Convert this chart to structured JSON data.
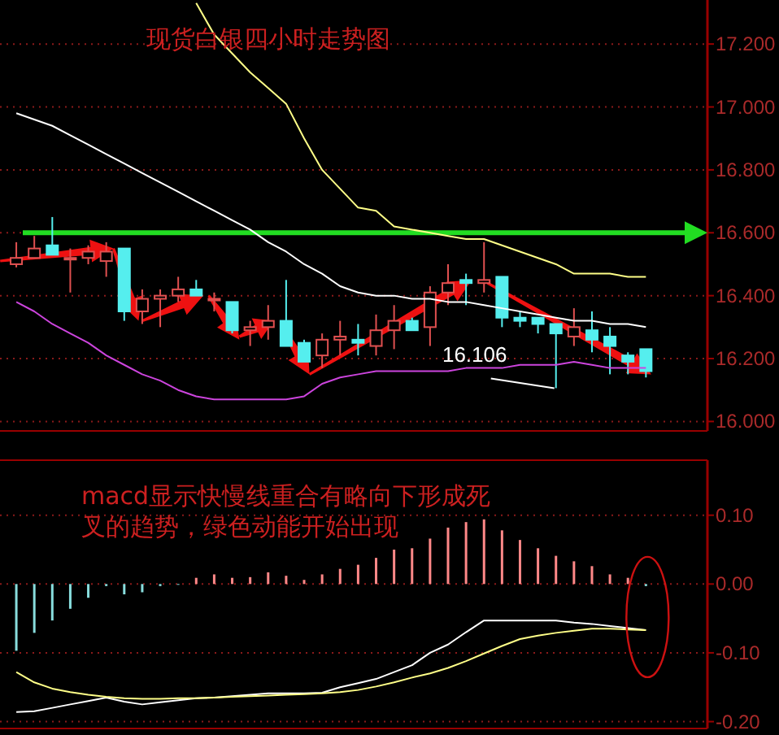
{
  "chart_data": [
    {
      "type": "candlestick",
      "title": "现货白银四小时走势图",
      "categories": [
        null,
        null,
        null,
        null,
        null,
        null,
        null,
        null,
        null,
        null,
        null,
        null,
        null,
        null,
        null,
        null,
        null,
        null,
        null,
        null,
        null,
        null,
        null,
        null,
        null,
        null,
        null,
        null,
        null,
        null,
        null,
        null,
        null,
        null,
        null,
        null
      ],
      "ohlc": [
        [
          16.5,
          16.57,
          16.49,
          16.52
        ],
        [
          16.52,
          16.59,
          16.52,
          16.55
        ],
        [
          16.56,
          16.65,
          16.53,
          16.53
        ],
        [
          16.52,
          16.55,
          16.41,
          16.52
        ],
        [
          16.52,
          16.56,
          16.5,
          16.54
        ],
        [
          16.51,
          16.57,
          16.46,
          16.54
        ],
        [
          16.55,
          16.55,
          16.32,
          16.35
        ],
        [
          16.35,
          16.42,
          16.31,
          16.39
        ],
        [
          16.39,
          16.42,
          16.3,
          16.4
        ],
        [
          16.4,
          16.46,
          16.38,
          16.42
        ],
        [
          16.42,
          16.45,
          16.4,
          16.4
        ],
        [
          16.39,
          16.41,
          16.35,
          16.39
        ],
        [
          16.38,
          16.38,
          16.28,
          16.29
        ],
        [
          16.29,
          16.32,
          16.24,
          16.3
        ],
        [
          16.3,
          16.37,
          16.26,
          16.32
        ],
        [
          16.32,
          16.45,
          16.24,
          16.24
        ],
        [
          16.25,
          16.26,
          16.19,
          16.19
        ],
        [
          16.21,
          16.28,
          16.17,
          16.26
        ],
        [
          16.26,
          16.32,
          16.21,
          16.27
        ],
        [
          16.26,
          16.31,
          16.21,
          16.25
        ],
        [
          16.24,
          16.34,
          16.21,
          16.29
        ],
        [
          16.29,
          16.37,
          16.23,
          16.32
        ],
        [
          16.32,
          16.33,
          16.29,
          16.29
        ],
        [
          16.3,
          16.43,
          16.24,
          16.41
        ],
        [
          16.41,
          16.5,
          16.37,
          16.44
        ],
        [
          16.45,
          16.47,
          16.37,
          16.44
        ],
        [
          16.44,
          16.57,
          16.41,
          16.45
        ],
        [
          16.46,
          16.46,
          16.3,
          16.33
        ],
        [
          16.33,
          16.35,
          16.3,
          16.32
        ],
        [
          16.33,
          16.33,
          16.28,
          16.31
        ],
        [
          16.31,
          16.31,
          16.106,
          16.28
        ],
        [
          16.27,
          16.36,
          16.24,
          16.3
        ],
        [
          16.29,
          16.35,
          16.22,
          16.26
        ],
        [
          16.27,
          16.3,
          16.15,
          16.24
        ],
        [
          16.21,
          16.22,
          16.15,
          16.19
        ],
        [
          16.23,
          16.23,
          16.14,
          16.16
        ]
      ],
      "series": [
        {
          "type": "line",
          "color": "#ffffff",
          "values": [
            16.98,
            16.96,
            16.94,
            16.91,
            16.88,
            16.85,
            16.82,
            16.79,
            16.76,
            16.73,
            16.7,
            16.67,
            16.64,
            16.61,
            16.57,
            16.54,
            16.5,
            16.47,
            16.43,
            16.41,
            16.4,
            16.4,
            16.39,
            16.39,
            16.38,
            16.38,
            16.37,
            16.36,
            16.35,
            16.34,
            16.33,
            16.32,
            16.32,
            16.31,
            16.31,
            16.3
          ]
        },
        {
          "type": "line",
          "color": "#ffff88",
          "values": [
            null,
            null,
            null,
            null,
            null,
            null,
            null,
            null,
            null,
            null,
            17.33,
            17.23,
            17.17,
            17.11,
            17.06,
            17.01,
            16.9,
            16.8,
            16.74,
            16.68,
            16.67,
            16.62,
            16.61,
            16.6,
            16.59,
            16.58,
            16.58,
            16.56,
            16.54,
            16.52,
            16.5,
            16.47,
            16.47,
            16.47,
            16.46,
            16.46
          ]
        },
        {
          "type": "line",
          "color": "#cc44dd",
          "values": [
            16.38,
            16.35,
            16.31,
            16.28,
            16.25,
            16.21,
            16.18,
            16.15,
            16.13,
            16.1,
            16.08,
            16.07,
            16.07,
            16.07,
            16.07,
            16.07,
            16.08,
            16.12,
            16.14,
            16.15,
            16.16,
            16.16,
            16.16,
            16.16,
            16.16,
            16.17,
            16.17,
            16.17,
            16.18,
            16.18,
            16.18,
            16.19,
            16.18,
            16.17,
            16.17,
            16.17
          ]
        }
      ],
      "ylim": [
        15.97,
        17.34
      ],
      "yticks": [
        {
          "value": 16.0,
          "label": "16.000"
        },
        {
          "value": 16.2,
          "label": "16.200"
        },
        {
          "value": 16.4,
          "label": "16.400"
        },
        {
          "value": 16.6,
          "label": "16.600"
        },
        {
          "value": 16.8,
          "label": "16.800"
        },
        {
          "value": 17.0,
          "label": "17.000"
        },
        {
          "value": 17.2,
          "label": "17.200"
        }
      ],
      "grid": "y",
      "ref_lines": [
        {
          "axis": "y",
          "value": 16.6,
          "color": "#22dd22"
        }
      ],
      "annotations": [
        "16.106"
      ]
    },
    {
      "type": "bar",
      "categories": [
        null,
        null,
        null,
        null,
        null,
        null,
        null,
        null,
        null,
        null,
        null,
        null,
        null,
        null,
        null,
        null,
        null,
        null,
        null,
        null,
        null,
        null,
        null,
        null,
        null,
        null,
        null,
        null,
        null,
        null,
        null,
        null,
        null,
        null,
        null,
        null
      ],
      "series": [
        {
          "type": "bar",
          "colors": [
            "#88dddd",
            "#88dddd",
            "#88dddd",
            "#88dddd",
            "#88dddd",
            "#88dddd",
            "#88dddd",
            "#88dddd",
            "#88dddd",
            "#88dddd",
            "#ff8888",
            "#ff8888",
            "#ff8888",
            "#ff8888",
            "#ff8888",
            "#ff8888",
            "#ff8888",
            "#ff8888",
            "#ff8888",
            "#ff8888",
            "#ff8888",
            "#ff8888",
            "#ff8888",
            "#ff8888",
            "#ff8888",
            "#ff8888",
            "#ff8888",
            "#ff8888",
            "#ff8888",
            "#ff8888",
            "#ff8888",
            "#ff8888",
            "#ff8888",
            "#ff8888",
            "#ff8888",
            "#88dddd"
          ],
          "values": [
            -0.097,
            -0.071,
            -0.053,
            -0.036,
            -0.02,
            -0.003,
            -0.015,
            -0.012,
            -0.003,
            0,
            0.009,
            0.014,
            0.009,
            0.01,
            0.017,
            0.012,
            0.006,
            0.014,
            0.022,
            0.028,
            0.038,
            0.05,
            0.052,
            0.066,
            0.082,
            0.09,
            0.094,
            0.078,
            0.064,
            0.052,
            0.041,
            0.033,
            0.026,
            0.014,
            0.009,
            -0.003
          ]
        },
        {
          "type": "line",
          "color": "#ffffff",
          "values": [
            -0.186,
            -0.185,
            -0.18,
            -0.175,
            -0.17,
            -0.165,
            -0.171,
            -0.175,
            -0.172,
            -0.169,
            -0.166,
            -0.165,
            -0.163,
            -0.161,
            -0.159,
            -0.159,
            -0.159,
            -0.158,
            -0.15,
            -0.144,
            -0.138,
            -0.128,
            -0.118,
            -0.1,
            -0.088,
            -0.07,
            -0.053,
            -0.053,
            -0.053,
            -0.053,
            -0.053,
            -0.056,
            -0.058,
            -0.061,
            -0.064,
            -0.067
          ]
        },
        {
          "type": "line",
          "color": "#ffff88",
          "values": [
            -0.128,
            -0.143,
            -0.152,
            -0.157,
            -0.161,
            -0.164,
            -0.166,
            -0.167,
            -0.167,
            -0.166,
            -0.166,
            -0.165,
            -0.164,
            -0.163,
            -0.162,
            -0.161,
            -0.16,
            -0.159,
            -0.157,
            -0.154,
            -0.149,
            -0.143,
            -0.136,
            -0.13,
            -0.122,
            -0.112,
            -0.101,
            -0.09,
            -0.08,
            -0.075,
            -0.071,
            -0.068,
            -0.065,
            -0.065,
            -0.066,
            -0.067
          ]
        }
      ],
      "ylim": [
        -0.21,
        0.18
      ],
      "yticks": [
        {
          "value": 0.1,
          "label": "0.10"
        },
        {
          "value": 0,
          "label": "0.00"
        },
        {
          "value": -0.1,
          "label": "-0.10"
        },
        {
          "value": -0.2,
          "label": "-0.20"
        }
      ],
      "grid": "y",
      "annotations": [
        "macd显示快慢线重合有略向下形成死叉的趋势，绿色动能开始出现"
      ]
    }
  ]
}
